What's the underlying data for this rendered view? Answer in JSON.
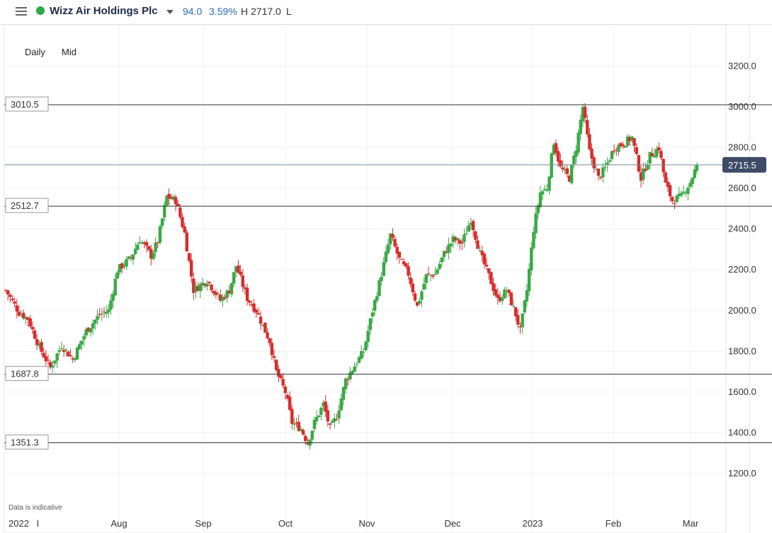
{
  "header": {
    "instrument": "Wizz Air Holdings Plc",
    "change": "94.0",
    "change_pct": "3.59%",
    "high": "H 2717.0",
    "low": "L",
    "status_color": "#2ea84a"
  },
  "options": {
    "interval": "Daily",
    "price_type": "Mid"
  },
  "disclaimer": "Data is indicative",
  "chart_data": {
    "type": "candlestick",
    "y_ticks": [
      1200.0,
      1400.0,
      1600.0,
      1800.0,
      2000.0,
      2200.0,
      2400.0,
      2600.0,
      2800.0,
      3000.0,
      3200.0
    ],
    "ylim": [
      1050,
      3290
    ],
    "x_labels": [
      "2022",
      "l",
      "Aug",
      "Sep",
      "Oct",
      "Nov",
      "Dec",
      "2023",
      "Feb",
      "Mar"
    ],
    "levels": [
      {
        "value": 3010.5,
        "label": "3010.5"
      },
      {
        "value": 2512.7,
        "label": "2512.7"
      },
      {
        "value": 1687.8,
        "label": "1687.8"
      },
      {
        "value": 1351.3,
        "label": "1351.3"
      }
    ],
    "last_price": {
      "value": 2715.5,
      "label": "2715.5"
    },
    "up_color": "#3aa845",
    "down_color": "#d72c2c",
    "anchors": [
      [
        0,
        2100
      ],
      [
        6,
        1990
      ],
      [
        10,
        1960
      ],
      [
        15,
        1820
      ],
      [
        20,
        1720
      ],
      [
        25,
        1830
      ],
      [
        30,
        1760
      ],
      [
        36,
        1900
      ],
      [
        42,
        1980
      ],
      [
        46,
        2000
      ],
      [
        50,
        2200
      ],
      [
        56,
        2260
      ],
      [
        60,
        2350
      ],
      [
        65,
        2270
      ],
      [
        68,
        2340
      ],
      [
        72,
        2560
      ],
      [
        76,
        2540
      ],
      [
        80,
        2380
      ],
      [
        84,
        2100
      ],
      [
        90,
        2150
      ],
      [
        96,
        2050
      ],
      [
        100,
        2100
      ],
      [
        103,
        2220
      ],
      [
        108,
        2060
      ],
      [
        112,
        2000
      ],
      [
        118,
        1850
      ],
      [
        121,
        1700
      ],
      [
        125,
        1600
      ],
      [
        128,
        1450
      ],
      [
        132,
        1420
      ],
      [
        135,
        1350
      ],
      [
        138,
        1450
      ],
      [
        142,
        1540
      ],
      [
        145,
        1420
      ],
      [
        148,
        1480
      ],
      [
        152,
        1660
      ],
      [
        156,
        1730
      ],
      [
        160,
        1800
      ],
      [
        164,
        2000
      ],
      [
        168,
        2180
      ],
      [
        172,
        2370
      ],
      [
        176,
        2250
      ],
      [
        180,
        2180
      ],
      [
        184,
        2020
      ],
      [
        188,
        2170
      ],
      [
        192,
        2180
      ],
      [
        196,
        2280
      ],
      [
        200,
        2350
      ],
      [
        204,
        2330
      ],
      [
        208,
        2450
      ],
      [
        212,
        2280
      ],
      [
        216,
        2170
      ],
      [
        220,
        2050
      ],
      [
        224,
        2100
      ],
      [
        228,
        1980
      ],
      [
        230,
        1900
      ],
      [
        233,
        2100
      ],
      [
        236,
        2400
      ],
      [
        239,
        2580
      ],
      [
        242,
        2600
      ],
      [
        245,
        2830
      ],
      [
        248,
        2700
      ],
      [
        252,
        2650
      ],
      [
        255,
        2800
      ],
      [
        258,
        3000
      ],
      [
        261,
        2780
      ],
      [
        265,
        2650
      ],
      [
        268,
        2700
      ],
      [
        272,
        2800
      ],
      [
        276,
        2820
      ],
      [
        280,
        2850
      ],
      [
        284,
        2650
      ],
      [
        288,
        2760
      ],
      [
        292,
        2800
      ],
      [
        295,
        2620
      ],
      [
        298,
        2540
      ],
      [
        302,
        2560
      ],
      [
        306,
        2630
      ],
      [
        309,
        2715
      ]
    ]
  }
}
